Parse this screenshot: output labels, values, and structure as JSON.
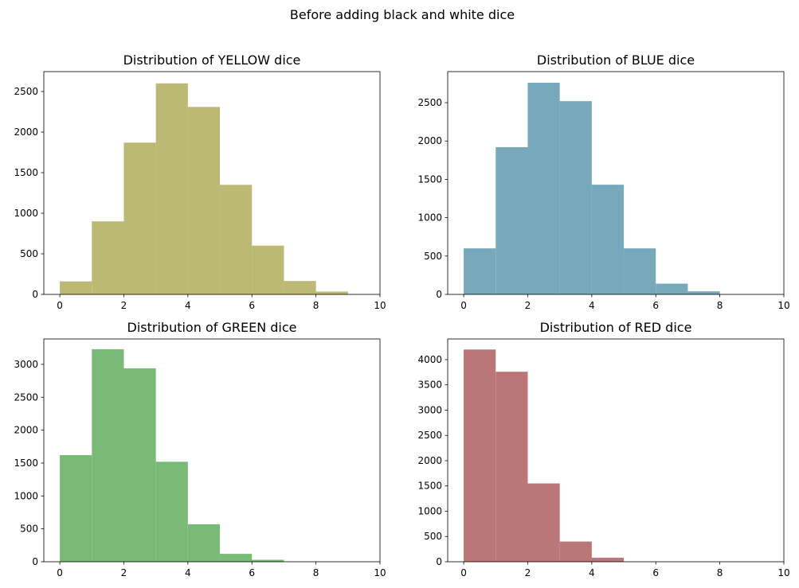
{
  "title": "Before adding black and white dice",
  "chart_data": [
    {
      "type": "histogram",
      "title": "Distribution of YELLOW dice",
      "color": "#bbb974",
      "bins": [
        0,
        1,
        2,
        3,
        4,
        5,
        6,
        7,
        8,
        9,
        10
      ],
      "values": [
        160,
        900,
        1870,
        2600,
        2310,
        1350,
        600,
        165,
        35,
        0
      ],
      "xlim": [
        -0.5,
        10
      ],
      "xticks": [
        0,
        2,
        4,
        6,
        8,
        10
      ],
      "ylim": [
        0,
        2745
      ],
      "yticks": [
        0,
        500,
        1000,
        1500,
        2000,
        2500
      ]
    },
    {
      "type": "histogram",
      "title": "Distribution of BLUE dice",
      "color": "#78a9ba",
      "bins": [
        0,
        1,
        2,
        3,
        4,
        5,
        6,
        7,
        8,
        9,
        10
      ],
      "values": [
        600,
        1920,
        2760,
        2520,
        1430,
        600,
        140,
        40,
        0,
        0
      ],
      "xlim": [
        -0.5,
        10
      ],
      "xticks": [
        0,
        2,
        4,
        6,
        8,
        10
      ],
      "ylim": [
        0,
        2905
      ],
      "yticks": [
        0,
        500,
        1000,
        1500,
        2000,
        2500
      ]
    },
    {
      "type": "histogram",
      "title": "Distribution of GREEN dice",
      "color": "#79bb76",
      "bins": [
        0,
        1,
        2,
        3,
        4,
        5,
        6,
        7,
        8,
        9,
        10
      ],
      "values": [
        1620,
        3230,
        2940,
        1520,
        570,
        120,
        30,
        0,
        0,
        0
      ],
      "xlim": [
        -0.5,
        10
      ],
      "xticks": [
        0,
        2,
        4,
        6,
        8,
        10
      ],
      "ylim": [
        0,
        3386
      ],
      "yticks": [
        0,
        500,
        1000,
        1500,
        2000,
        2500,
        3000
      ]
    },
    {
      "type": "histogram",
      "title": "Distribution of RED dice",
      "color": "#bb7777",
      "bins": [
        0,
        1,
        2,
        3,
        4,
        5,
        6,
        7,
        8,
        9,
        10
      ],
      "values": [
        4200,
        3760,
        1550,
        400,
        80,
        0,
        0,
        0,
        0,
        0
      ],
      "xlim": [
        -0.5,
        10
      ],
      "xticks": [
        0,
        2,
        4,
        6,
        8,
        10
      ],
      "ylim": [
        0,
        4409
      ],
      "yticks": [
        0,
        500,
        1000,
        1500,
        2000,
        2500,
        3000,
        3500,
        4000
      ]
    }
  ]
}
